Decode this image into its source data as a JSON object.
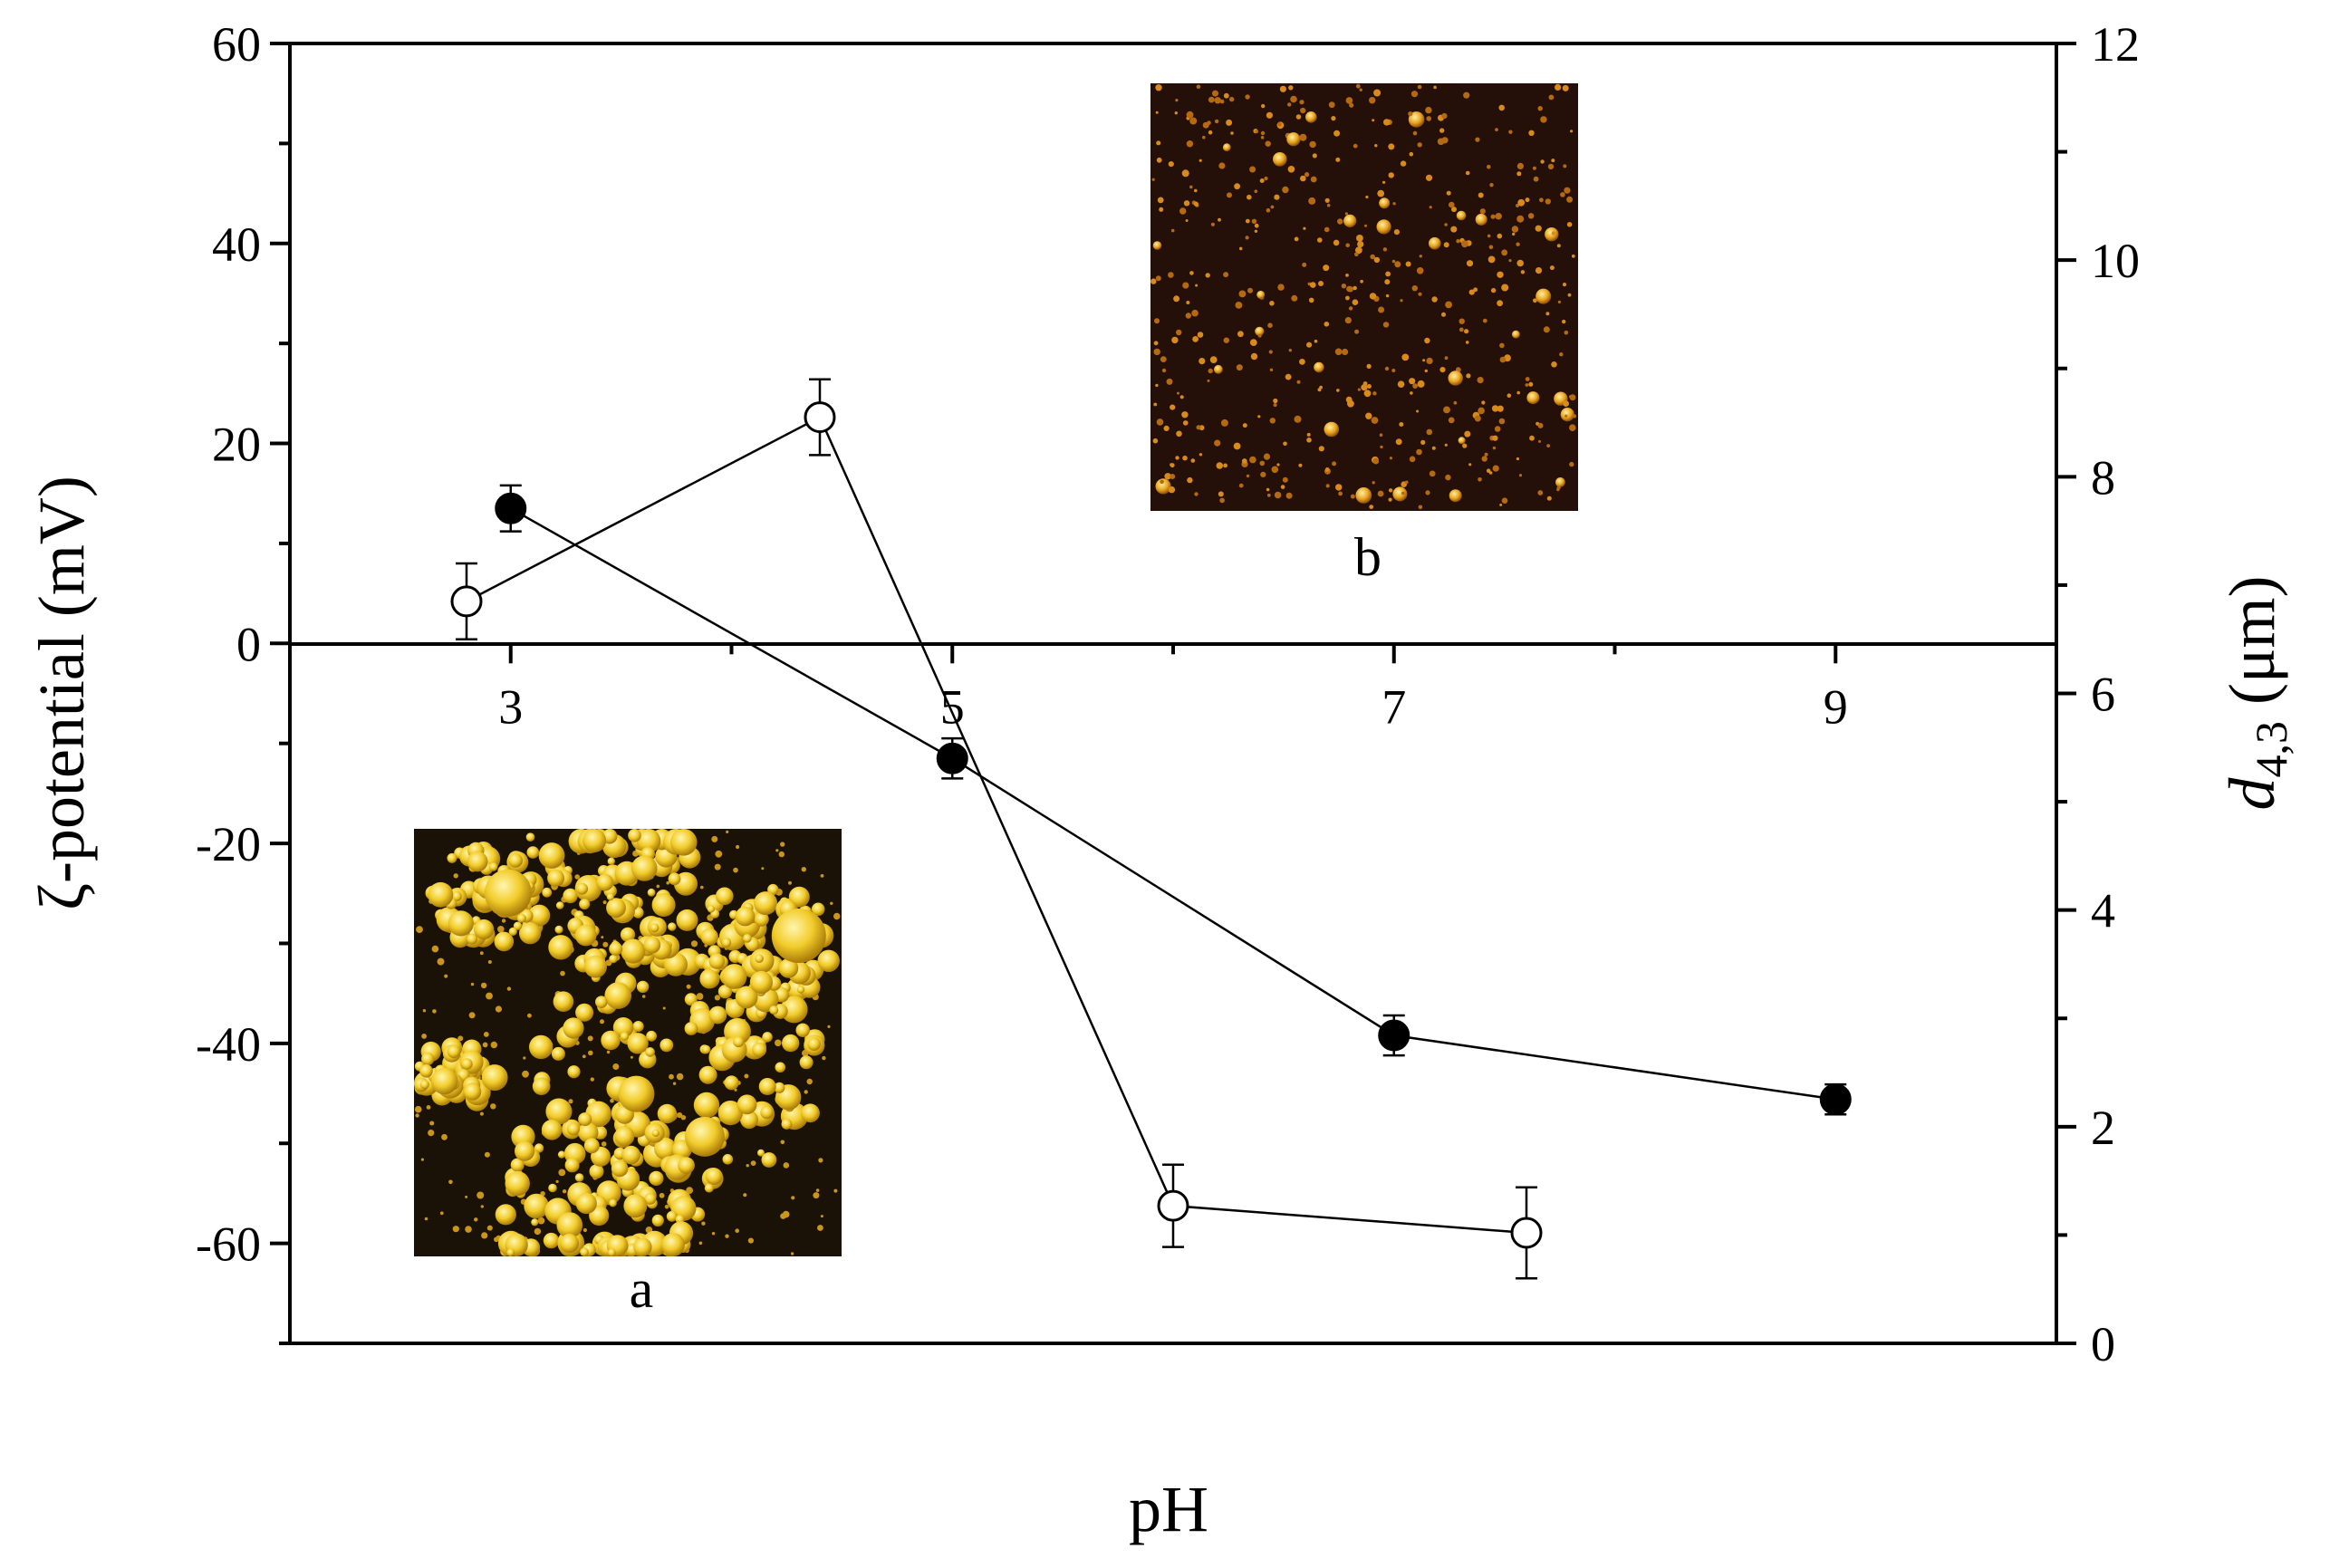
{
  "chart_data": {
    "type": "scatter",
    "xlabel": "pH",
    "ylabel_left": "ζ-potential (mV)",
    "ylabel_right": {
      "main": "d",
      "subscript": "4,3",
      "unit": " (μm)"
    },
    "x_ticks": [
      "3",
      "5",
      "7",
      "9"
    ],
    "x_tick_values": [
      3,
      5,
      7,
      9
    ],
    "xlim": [
      2,
      10
    ],
    "ylim_left": [
      -70,
      60
    ],
    "ylim_right": [
      0,
      12
    ],
    "y_ticks_left": [
      60,
      40,
      20,
      0,
      -20,
      -40,
      -60
    ],
    "y_ticks_right": [
      0,
      2,
      4,
      6,
      8,
      10,
      12
    ],
    "zero_line": true,
    "series": [
      {
        "marker": "filled-circle",
        "axis": "left",
        "color": "#000000",
        "x": [
          3,
          5,
          7,
          9
        ],
        "y": [
          13.5,
          -11.5,
          -39.2,
          -45.6
        ],
        "yerr": [
          2.3,
          2.0,
          2.0,
          1.5
        ]
      },
      {
        "marker": "open-circle",
        "axis": "right",
        "color": "#000000",
        "x": [
          2.8,
          4.4,
          6.0,
          7.6
        ],
        "y": [
          6.85,
          8.55,
          1.27,
          1.02
        ],
        "yerr": [
          0.35,
          0.35,
          0.38,
          0.42
        ]
      }
    ],
    "insets": [
      {
        "label": "a",
        "description_color": "#f0c020"
      },
      {
        "label": "b",
        "description_color": "#e0a020"
      }
    ]
  }
}
